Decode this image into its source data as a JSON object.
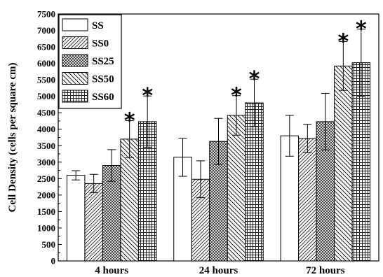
{
  "chart_data": {
    "type": "bar",
    "categories": [
      "4 hours",
      "24 hours",
      "72 hours"
    ],
    "series": [
      {
        "name": "SS",
        "pattern": "plain",
        "values": [
          2600,
          3150,
          3800
        ],
        "errors": [
          140,
          580,
          620
        ]
      },
      {
        "name": "SS0",
        "pattern": "diag-fwd",
        "values": [
          2350,
          2480,
          3720
        ],
        "errors": [
          280,
          560,
          430
        ]
      },
      {
        "name": "SS25",
        "pattern": "cross-hatch",
        "values": [
          2900,
          3630,
          4230
        ],
        "errors": [
          480,
          700,
          860
        ]
      },
      {
        "name": "SS50",
        "pattern": "diag-back",
        "values": [
          3700,
          4420,
          5920
        ],
        "errors": [
          560,
          600,
          740
        ]
      },
      {
        "name": "SS60",
        "pattern": "grid",
        "values": [
          4230,
          4800,
          6020
        ],
        "errors": [
          780,
          720,
          1020
        ]
      }
    ],
    "significance": [
      {
        "category": 0,
        "series": 3,
        "mark": "*"
      },
      {
        "category": 0,
        "series": 4,
        "mark": "*"
      },
      {
        "category": 1,
        "series": 3,
        "mark": "*"
      },
      {
        "category": 1,
        "series": 4,
        "mark": "*"
      },
      {
        "category": 2,
        "series": 3,
        "mark": "*"
      },
      {
        "category": 2,
        "series": 4,
        "mark": "*"
      }
    ],
    "ylabel": "Cell Density (cells per square cm)",
    "xlabel": "",
    "ylim": [
      0,
      7500
    ],
    "yticks": [
      "0",
      "500",
      "1000",
      "1500",
      "2000",
      "2500",
      "3000",
      "3500",
      "4000",
      "4500",
      "5000",
      "5500",
      "6000",
      "6500",
      "7000",
      "7500"
    ],
    "grid": false,
    "legend_position": "top-left"
  }
}
